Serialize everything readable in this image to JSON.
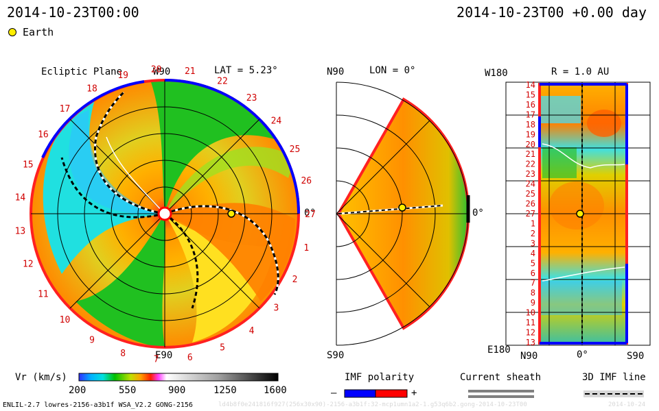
{
  "header": {
    "left_datetime": "2014-10-23T00:00",
    "right_datetime": "2014-10-23T00 +0.00 day"
  },
  "legend": {
    "earth_label": "Earth"
  },
  "ecliptic_panel": {
    "title": "Ecliptic Plane",
    "lat_label": "LAT = 5.23°",
    "top_label": "W90",
    "bottom_label": "E90",
    "right_label": "0°",
    "carrington_labels": [
      "1",
      "2",
      "3",
      "4",
      "5",
      "6",
      "7",
      "8",
      "9",
      "10",
      "11",
      "12",
      "13",
      "14",
      "15",
      "16",
      "17",
      "18",
      "19",
      "20",
      "21",
      "22",
      "23",
      "24",
      "25",
      "26",
      "27"
    ]
  },
  "meridional_panel": {
    "lon_label": "LON = 0°",
    "top_label": "N90",
    "bottom_label": "S90",
    "right_label": "0°"
  },
  "radial_panel": {
    "r_label": "R = 1.0 AU",
    "top_left_label": "W180",
    "bottom_left_label": "E180",
    "bottom_labels": [
      "N90",
      "0°",
      "S90"
    ],
    "rows": [
      "14",
      "15",
      "16",
      "17",
      "18",
      "19",
      "20",
      "21",
      "22",
      "23",
      "24",
      "25",
      "26",
      "27",
      "1",
      "2",
      "3",
      "4",
      "5",
      "6",
      "7",
      "8",
      "9",
      "10",
      "11",
      "12",
      "13"
    ]
  },
  "colorbar": {
    "label": "Vr (km/s)",
    "ticks": [
      "200",
      "550",
      "900",
      "1250",
      "1600"
    ]
  },
  "imf_polarity": {
    "title": "IMF polarity",
    "minus": "–",
    "plus": "+",
    "neg_color": "#0000ff",
    "pos_color": "#ff0000"
  },
  "current_sheath": {
    "title": "Current sheath"
  },
  "imf_line": {
    "title": "3D IMF line"
  },
  "footer": {
    "left": "ENLIL-2.7 lowres-2156-a3b1f WSA_V2.2 GONG-2156",
    "mid": "ld4b8f0e241816f927(256x30x90)-2156-a3b1f:32-mcp1umn1a2-1.g53q6b2.gong-2014-10-23T00",
    "right": "2014-10-24"
  }
}
